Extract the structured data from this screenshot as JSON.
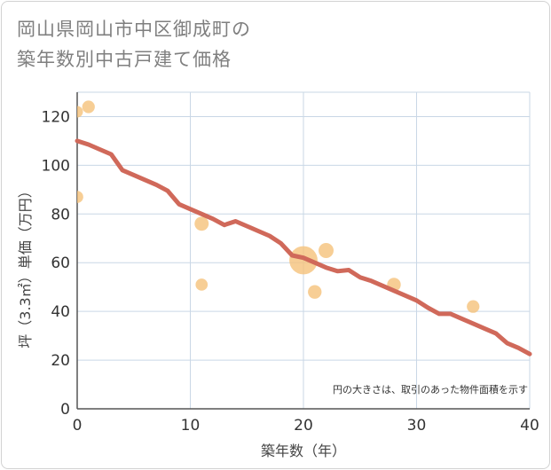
{
  "title": {
    "line1": "岡山県岡山市中区御成町の",
    "line2": "築年数別中古戸建て価格"
  },
  "chart_data": {
    "type": "scatter",
    "title": "岡山県岡山市中区御成町の築年数別中古戸建て価格",
    "xlabel": "築年数（年）",
    "ylabel": "坪（3.3㎡）単価（万円）",
    "xlim": [
      0,
      40
    ],
    "ylim": [
      0,
      130
    ],
    "xticks": [
      0,
      10,
      20,
      30,
      40
    ],
    "yticks": [
      0,
      20,
      40,
      60,
      80,
      100,
      120
    ],
    "grid": true,
    "annotation": "円の大きさは、取引のあった物件面積を示す",
    "colors": {
      "bubble": "#f5c27a",
      "trend": "#d0695a",
      "grid": "#c9d7e6",
      "axis": "#555555"
    },
    "points": [
      {
        "x": 0,
        "y": 122,
        "size": 1
      },
      {
        "x": 1,
        "y": 124,
        "size": 1.2
      },
      {
        "x": 0,
        "y": 87,
        "size": 1.1
      },
      {
        "x": 11,
        "y": 76,
        "size": 1.5
      },
      {
        "x": 11,
        "y": 51,
        "size": 1.1
      },
      {
        "x": 20,
        "y": 61,
        "size": 6
      },
      {
        "x": 21,
        "y": 48,
        "size": 1.4
      },
      {
        "x": 22,
        "y": 65,
        "size": 1.7
      },
      {
        "x": 28,
        "y": 51,
        "size": 1.4
      },
      {
        "x": 35,
        "y": 42,
        "size": 1.2
      }
    ],
    "trend": {
      "x": [
        0,
        1,
        2,
        3,
        4,
        5,
        6,
        7,
        8,
        9,
        10,
        11,
        12,
        13,
        14,
        15,
        16,
        17,
        18,
        19,
        20,
        21,
        22,
        23,
        24,
        25,
        26,
        27,
        28,
        29,
        30,
        31,
        32,
        33,
        34,
        35,
        36,
        37,
        38,
        39,
        40
      ],
      "y": [
        110,
        108.5,
        106.5,
        104.5,
        98,
        96,
        94,
        92,
        89.5,
        84,
        82,
        80,
        78,
        75.5,
        77,
        75,
        73,
        71,
        68,
        63,
        62,
        60,
        58,
        56.5,
        57,
        54,
        52.5,
        50.5,
        48.5,
        46.5,
        44.5,
        41.5,
        39,
        39,
        37,
        35,
        33,
        31,
        27,
        25,
        22.5
      ]
    }
  }
}
